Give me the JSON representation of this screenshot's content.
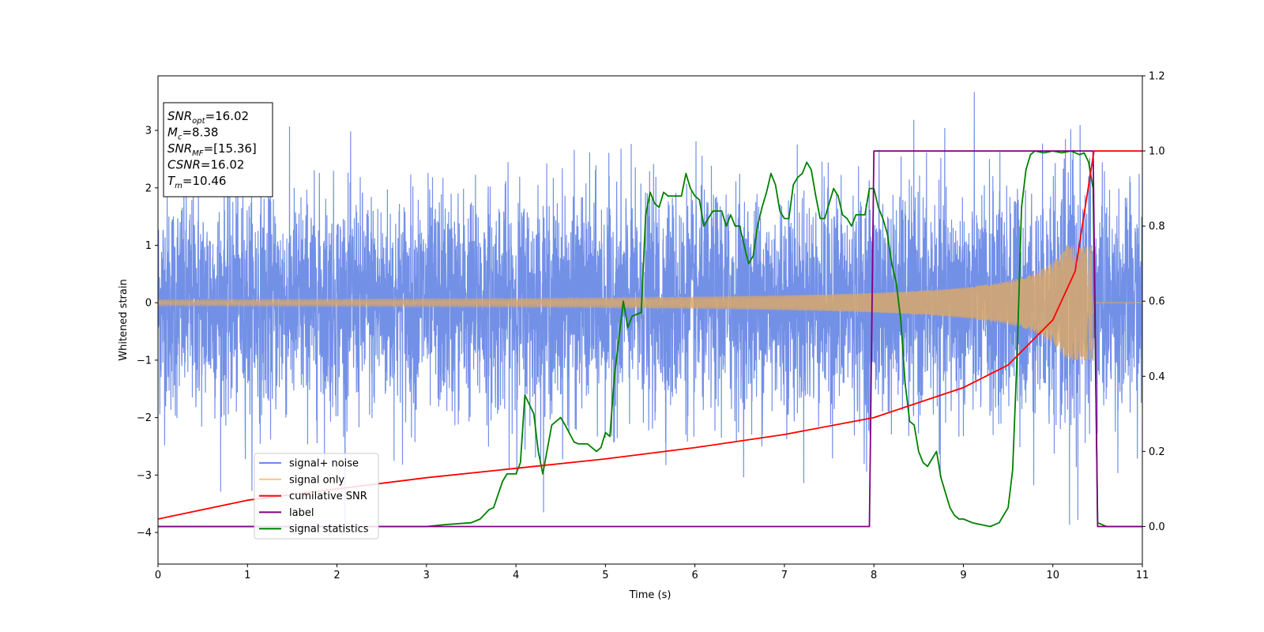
{
  "chart_data": {
    "type": "line",
    "xlabel": "Time (s)",
    "ylabel": "Whitened strain",
    "xlim": [
      0,
      11
    ],
    "ylim_left": [
      -4.55,
      3.95
    ],
    "ylim_right": [
      -0.1,
      1.2
    ],
    "x_ticks": [
      "0",
      "1",
      "2",
      "3",
      "4",
      "5",
      "6",
      "7",
      "8",
      "9",
      "10",
      "11"
    ],
    "y_ticks_left": [
      "−4",
      "−3",
      "−2",
      "−1",
      "0",
      "1",
      "2",
      "3"
    ],
    "y_ticks_right": [
      "0.0",
      "0.2",
      "0.4",
      "0.6",
      "0.8",
      "1.0",
      "1.2"
    ],
    "grid": false,
    "legend_position": "lower-left",
    "annotation_box": {
      "lines": [
        {
          "base": "SNR",
          "sub": "opt",
          "rest": "=16.02"
        },
        {
          "base": "M",
          "sub": "c",
          "rest": "=8.38"
        },
        {
          "base": "SNR",
          "sub": "MF",
          "rest": "=[15.36]"
        },
        {
          "base": "CSNR",
          "sub": "",
          "rest": "=16.02"
        },
        {
          "base": "T",
          "sub": "m",
          "rest": "=10.46"
        }
      ]
    },
    "series": [
      {
        "name": "signal+ noise",
        "color": "#6b8ae6",
        "axis": "left",
        "description": "noisy strain, amplitude about ±2 with spikes to ±3.6"
      },
      {
        "name": "signal only",
        "color": "#f5c77e",
        "axis": "left",
        "description": "chirp growing from amplitude ~0.05 to ~1.0 until t=10.46"
      },
      {
        "name": "cumilative SNR",
        "color": "#ff0000",
        "axis": "right",
        "x": [
          0,
          1,
          2,
          3,
          4,
          5,
          6,
          7,
          8,
          9,
          9.5,
          10,
          10.25,
          10.46,
          11
        ],
        "values": [
          0.02,
          0.07,
          0.1,
          0.13,
          0.155,
          0.18,
          0.21,
          0.245,
          0.29,
          0.37,
          0.43,
          0.55,
          0.68,
          1.0,
          1.0
        ]
      },
      {
        "name": "label",
        "color": "#800080",
        "axis": "right",
        "x": [
          0,
          7.95,
          8.0,
          10.45,
          10.5,
          11
        ],
        "values": [
          0.0,
          0.0,
          1.0,
          1.0,
          0.0,
          0.0
        ]
      },
      {
        "name": "signal statistics",
        "color": "#008000",
        "axis": "right",
        "x": [
          0,
          1,
          2,
          3,
          3.2,
          3.5,
          3.6,
          3.7,
          3.75,
          3.85,
          3.9,
          4.0,
          4.05,
          4.1,
          4.2,
          4.25,
          4.3,
          4.4,
          4.5,
          4.55,
          4.65,
          4.7,
          4.8,
          4.9,
          4.95,
          5.0,
          5.05,
          5.1,
          5.15,
          5.2,
          5.25,
          5.3,
          5.4,
          5.45,
          5.5,
          5.55,
          5.6,
          5.65,
          5.7,
          5.75,
          5.8,
          5.85,
          5.9,
          5.95,
          6.0,
          6.05,
          6.1,
          6.15,
          6.2,
          6.25,
          6.3,
          6.35,
          6.4,
          6.45,
          6.5,
          6.55,
          6.6,
          6.65,
          6.7,
          6.75,
          6.8,
          6.85,
          6.9,
          6.95,
          7.0,
          7.05,
          7.1,
          7.15,
          7.2,
          7.25,
          7.3,
          7.35,
          7.4,
          7.45,
          7.5,
          7.55,
          7.6,
          7.65,
          7.7,
          7.75,
          7.8,
          7.85,
          7.9,
          7.95,
          8.0,
          8.05,
          8.1,
          8.15,
          8.2,
          8.25,
          8.3,
          8.35,
          8.4,
          8.45,
          8.5,
          8.55,
          8.6,
          8.65,
          8.7,
          8.75,
          8.8,
          8.85,
          8.9,
          8.95,
          9.0,
          9.1,
          9.2,
          9.3,
          9.35,
          9.4,
          9.45,
          9.5,
          9.55,
          9.6,
          9.65,
          9.7,
          9.75,
          9.8,
          9.9,
          10.0,
          10.1,
          10.2,
          10.3,
          10.35,
          10.4,
          10.45,
          10.5,
          10.55,
          10.6,
          11
        ],
        "values": [
          0.0,
          0.0,
          0.0,
          0.0,
          0.005,
          0.01,
          0.02,
          0.045,
          0.05,
          0.12,
          0.14,
          0.14,
          0.17,
          0.35,
          0.3,
          0.2,
          0.14,
          0.27,
          0.29,
          0.27,
          0.225,
          0.22,
          0.22,
          0.2,
          0.21,
          0.25,
          0.24,
          0.4,
          0.5,
          0.6,
          0.53,
          0.56,
          0.57,
          0.83,
          0.89,
          0.86,
          0.85,
          0.89,
          0.88,
          0.88,
          0.88,
          0.88,
          0.94,
          0.9,
          0.88,
          0.87,
          0.8,
          0.82,
          0.84,
          0.84,
          0.84,
          0.8,
          0.83,
          0.8,
          0.8,
          0.75,
          0.7,
          0.72,
          0.8,
          0.85,
          0.89,
          0.94,
          0.91,
          0.84,
          0.82,
          0.82,
          0.91,
          0.93,
          0.94,
          0.97,
          0.95,
          0.88,
          0.82,
          0.82,
          0.86,
          0.9,
          0.88,
          0.83,
          0.82,
          0.8,
          0.83,
          0.83,
          0.83,
          0.9,
          0.9,
          0.85,
          0.82,
          0.78,
          0.7,
          0.65,
          0.55,
          0.38,
          0.28,
          0.27,
          0.2,
          0.17,
          0.16,
          0.18,
          0.2,
          0.13,
          0.09,
          0.05,
          0.03,
          0.02,
          0.02,
          0.01,
          0.005,
          0.0,
          0.005,
          0.01,
          0.03,
          0.05,
          0.15,
          0.45,
          0.85,
          0.95,
          0.99,
          1.0,
          0.995,
          1.0,
          0.995,
          1.0,
          0.99,
          0.995,
          0.97,
          0.9,
          0.01,
          0.005,
          0.0,
          0.0
        ]
      }
    ],
    "legend": [
      "signal+ noise",
      "signal only",
      "cumilative SNR",
      "label",
      "signal statistics"
    ]
  }
}
